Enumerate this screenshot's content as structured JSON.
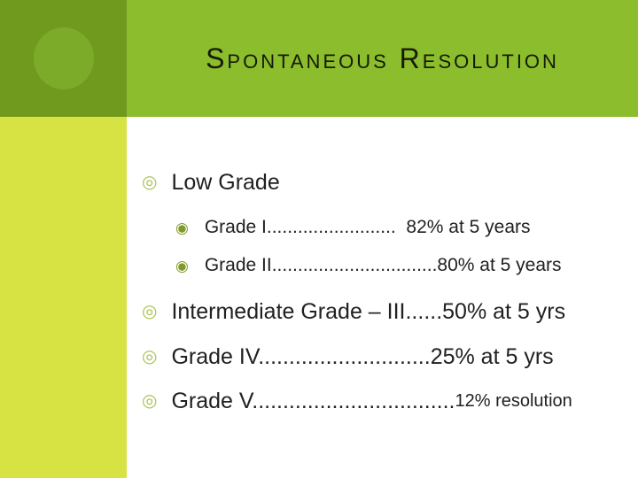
{
  "slide": {
    "title": "Spontaneous Resolution",
    "bullets": [
      {
        "level": 1,
        "text": "Low Grade",
        "suffix": ""
      },
      {
        "level": 2,
        "text": "Grade I.........................  82% at 5 years",
        "suffix": ""
      },
      {
        "level": 2,
        "text": "Grade II................................80% at 5 years",
        "suffix": ""
      },
      {
        "level": 1,
        "text": "Intermediate Grade – III......50% at 5 yrs",
        "suffix": ""
      },
      {
        "level": 1,
        "text": "Grade IV............................25% at 5 yrs",
        "suffix": ""
      },
      {
        "level": 1,
        "text": "Grade V.................................",
        "suffix": "12% resolution"
      }
    ]
  },
  "icons": {
    "bullet_level1": "◎",
    "bullet_level2": "◉"
  },
  "colors": {
    "header_band": "#8bbd2c",
    "corner_square": "#6f9a1e",
    "corner_circle": "#7cab2a",
    "sidebar": "#d7e243",
    "bullet_level1": "#a6c44d",
    "bullet_level2": "#7f9a2b",
    "title_text": "#161a08",
    "body_text": "#212121",
    "content_background": "#ffffff"
  }
}
